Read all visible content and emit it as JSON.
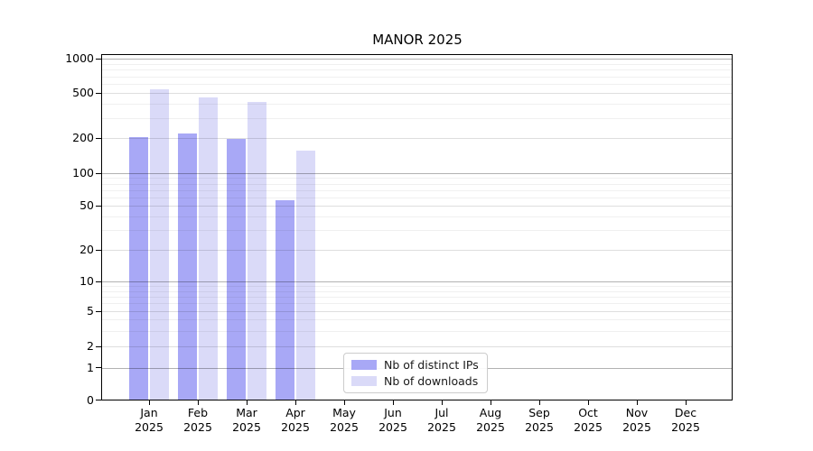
{
  "title": "MANOR 2025",
  "chart_data": {
    "type": "bar",
    "title": "MANOR 2025",
    "yscale": "symlog",
    "ylim": [
      0,
      1000
    ],
    "yticks": [
      0,
      1,
      2,
      5,
      10,
      20,
      50,
      100,
      200,
      500,
      1000
    ],
    "grid": true,
    "x_year": "2025",
    "categories": [
      "Jan",
      "Feb",
      "Mar",
      "Apr",
      "May",
      "Jun",
      "Jul",
      "Aug",
      "Sep",
      "Oct",
      "Nov",
      "Dec"
    ],
    "series": [
      {
        "name": "Nb of distinct IPs",
        "color": "#a8a8f6",
        "values": [
          205,
          220,
          195,
          56,
          null,
          null,
          null,
          null,
          null,
          null,
          null,
          null
        ]
      },
      {
        "name": "Nb of downloads",
        "color": "#dadaf8",
        "values": [
          540,
          460,
          420,
          155,
          null,
          null,
          null,
          null,
          null,
          null,
          null,
          null
        ]
      }
    ],
    "legend_position": "lower center"
  }
}
